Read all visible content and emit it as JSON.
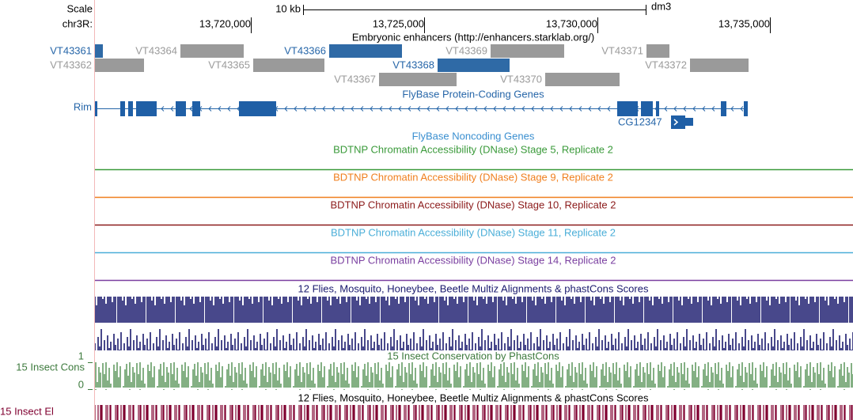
{
  "header": {
    "scale_label": "Scale",
    "scale_value": "10 kb",
    "assembly": "dm3",
    "chrom_label": "chr3R:",
    "positions": [
      "13,720,000",
      "13,725,000",
      "13,730,000",
      "13,735,000"
    ]
  },
  "tracks": {
    "enhancers": {
      "title": "Embryonic enhancers (http://enhancers.starklab.org/)",
      "items": [
        "VT43361",
        "VT43364",
        "VT43366",
        "VT43369",
        "VT43371",
        "VT43362",
        "VT43365",
        "VT43368",
        "VT43372",
        "VT43367",
        "VT43370"
      ]
    },
    "genes": {
      "title": "FlyBase Protein-Coding Genes",
      "items": [
        "Rim",
        "CG12347"
      ]
    },
    "noncoding": {
      "title": "FlyBase Noncoding Genes"
    },
    "dnase": [
      "BDTNP Chromatin Accessibility (DNase) Stage 5, Replicate 2",
      "BDTNP Chromatin Accessibility (DNase) Stage 9, Replicate 2",
      "BDTNP Chromatin Accessibility (DNase) Stage 10, Replicate 2",
      "BDTNP Chromatin Accessibility (DNase) Stage 11, Replicate 2",
      "BDTNP Chromatin Accessibility (DNase) Stage 14, Replicate 2"
    ],
    "multiz": {
      "title": "12 Flies, Mosquito, Honeybee, Beetle Multiz Alignments & phastCons Scores"
    },
    "phastcons": {
      "title": "15 Insect Conservation by PhastCons",
      "side_label": "15 Insect Cons",
      "axis_max": "1",
      "axis_min": "0"
    },
    "elements": {
      "title": "12 Flies, Mosquito, Honeybee, Beetle Multiz Alignments & phastCons Scores",
      "side_label": "15 Insect El"
    }
  }
}
